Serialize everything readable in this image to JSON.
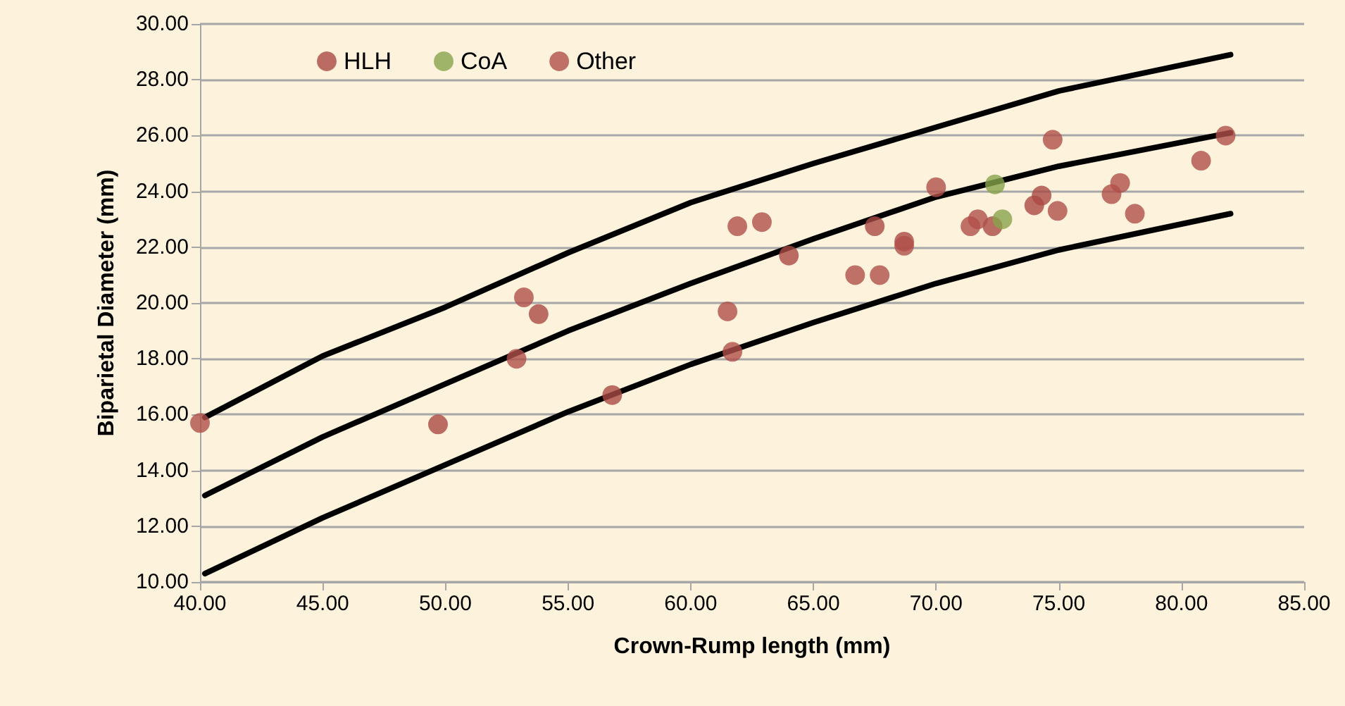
{
  "chart_data": {
    "type": "scatter",
    "xlabel": "Crown-Rump length (mm)",
    "ylabel": "Biparietal Diameter (mm)",
    "xlim": [
      40,
      85
    ],
    "xticks": [
      {
        "value": 40,
        "label": "40.00"
      },
      {
        "value": 45,
        "label": "45.00"
      },
      {
        "value": 50,
        "label": "50.00"
      },
      {
        "value": 55,
        "label": "55.00"
      },
      {
        "value": 60,
        "label": "60.00"
      },
      {
        "value": 65,
        "label": "65.00"
      },
      {
        "value": 70,
        "label": "70.00"
      },
      {
        "value": 75,
        "label": "75.00"
      },
      {
        "value": 80,
        "label": "80.00"
      },
      {
        "value": 85,
        "label": "85.00"
      }
    ],
    "ylim": [
      10,
      30
    ],
    "yticks": [
      {
        "value": 10,
        "label": "10.00"
      },
      {
        "value": 12,
        "label": "12.00"
      },
      {
        "value": 14,
        "label": "14.00"
      },
      {
        "value": 16,
        "label": "16.00"
      },
      {
        "value": 18,
        "label": "18.00"
      },
      {
        "value": 20,
        "label": "20.00"
      },
      {
        "value": 22,
        "label": "22.00"
      },
      {
        "value": 24,
        "label": "24.00"
      },
      {
        "value": 26,
        "label": "26.00"
      },
      {
        "value": 28,
        "label": "28.00"
      },
      {
        "value": 30,
        "label": "30.00"
      }
    ],
    "grid": "y",
    "legend": "top",
    "marker": "circle",
    "series": [
      {
        "type": "line",
        "color": "#000000",
        "marker": "none",
        "x": [
          40.2,
          45,
          50,
          55,
          60,
          65,
          70,
          75,
          82
        ],
        "values": [
          15.9,
          18.1,
          19.85,
          21.8,
          23.6,
          25.0,
          26.3,
          27.6,
          28.9
        ]
      },
      {
        "type": "line",
        "color": "#000000",
        "marker": "none",
        "x": [
          40.2,
          45,
          50,
          55,
          60,
          65,
          70,
          75,
          82
        ],
        "values": [
          13.1,
          15.2,
          17.1,
          19.0,
          20.7,
          22.3,
          23.8,
          24.9,
          26.1
        ]
      },
      {
        "type": "line",
        "color": "#000000",
        "marker": "none",
        "x": [
          40.2,
          45,
          50,
          55,
          60,
          65,
          70,
          75,
          82
        ],
        "values": [
          10.3,
          12.3,
          14.2,
          16.1,
          17.8,
          19.3,
          20.7,
          21.9,
          23.2
        ]
      },
      {
        "name": "HLH",
        "color": "#a94a44",
        "x": [
          49.7,
          53.8,
          56.8,
          64.0,
          67.5,
          68.7,
          72.3,
          74.0,
          74.3
        ],
        "values": [
          15.65,
          19.6,
          16.7,
          21.7,
          22.75,
          22.2,
          22.75,
          23.5,
          23.85
        ]
      },
      {
        "name": "CoA",
        "color": "#87a44b",
        "x": [
          72.4,
          72.7
        ],
        "values": [
          24.25,
          23.0
        ]
      },
      {
        "name": "Other",
        "color": "#b0504a",
        "x": [
          40.0,
          53.2,
          52.9,
          61.5,
          61.7,
          61.9,
          62.9,
          66.7,
          67.7,
          68.7,
          70.0,
          71.4,
          71.7,
          74.75,
          74.95,
          77.15,
          77.5,
          78.1,
          80.8,
          81.8
        ],
        "values": [
          15.7,
          20.2,
          18.0,
          19.7,
          18.25,
          22.75,
          22.9,
          21.0,
          21.0,
          22.05,
          24.15,
          22.75,
          23.0,
          25.85,
          23.3,
          23.9,
          24.3,
          23.2,
          25.1,
          26.0
        ]
      }
    ]
  }
}
